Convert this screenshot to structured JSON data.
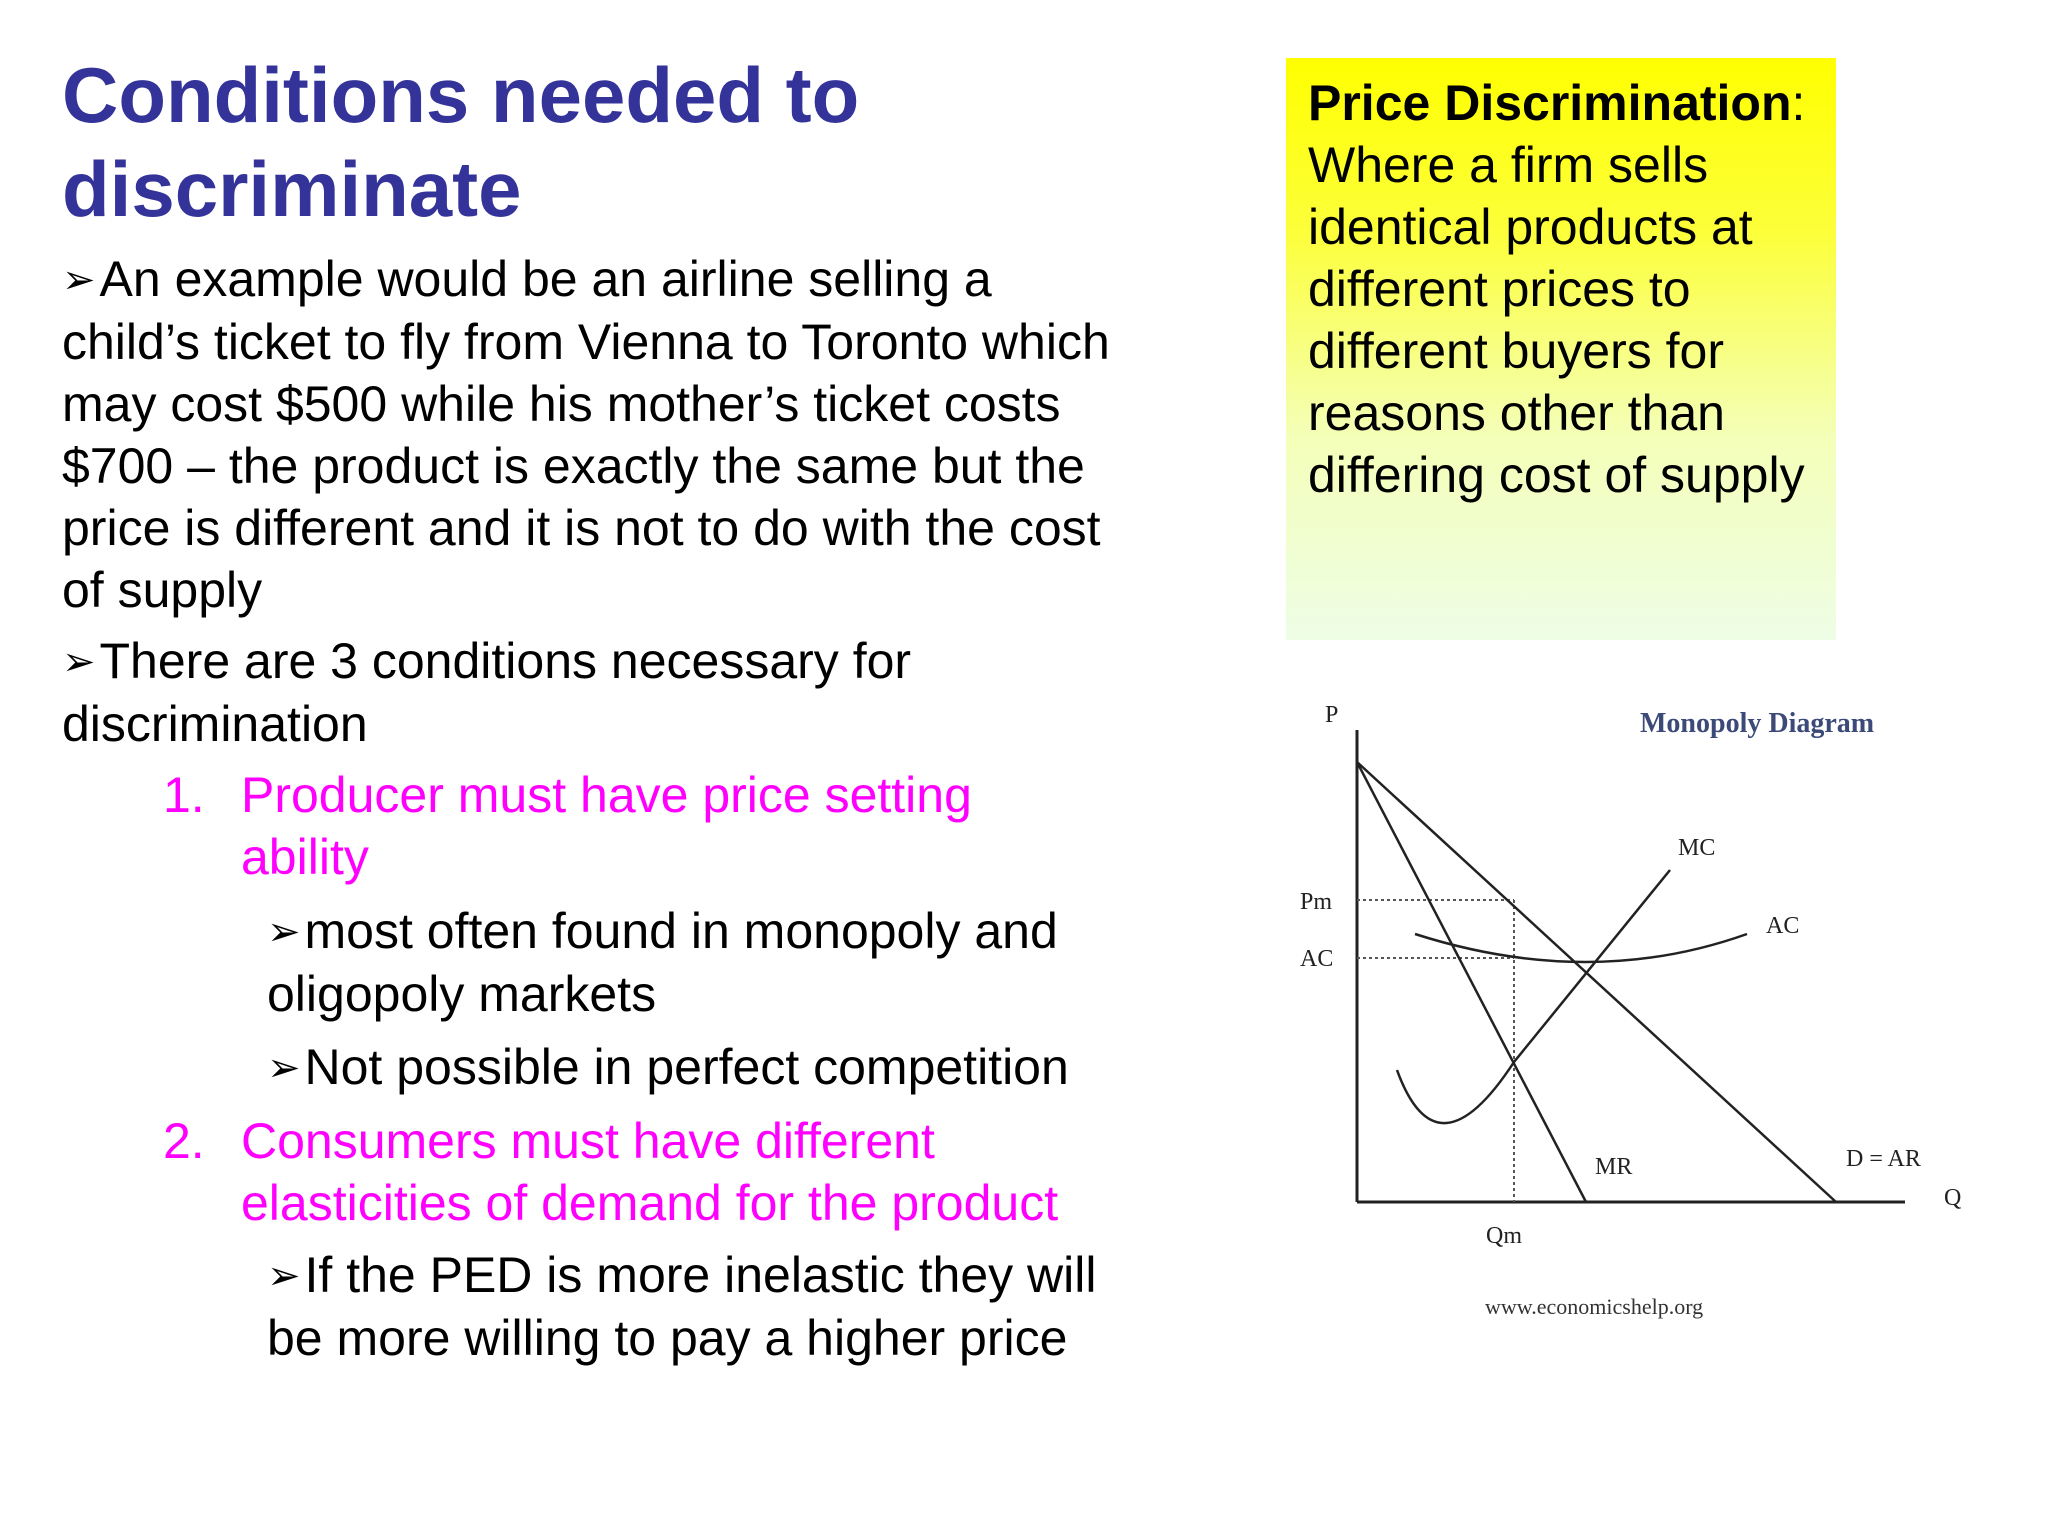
{
  "slide": {
    "title": "Conditions needed to discriminate",
    "bullets": [
      "An example would be an airline selling a child’s ticket to fly from Vienna to Toronto which may cost $500 while his mother’s ticket costs $700 – the product is exactly the same but the price is different and it is not to do with the cost of supply",
      "There are 3 conditions necessary for discrimination"
    ],
    "conditions": [
      {
        "number": "1.",
        "text": "Producer must have price setting ability",
        "sub_bullets": [
          "most often found in monopoly and oligopoly markets",
          "Not possible in perfect competition"
        ]
      },
      {
        "number": "2.",
        "text": "Consumers must have different elasticities of demand for the product",
        "sub_bullets": [
          "If the PED is more inelastic they will be more willing to pay a higher price"
        ]
      }
    ],
    "bullet_glyph": "➢"
  },
  "definition": {
    "term": "Price Discrimination",
    "separator": ":",
    "text": "Where a firm sells identical products at different prices to different buyers for reasons other than differing cost of supply"
  },
  "diagram": {
    "title": "Monopoly Diagram",
    "labels": {
      "p_axis": "P",
      "q_axis": "Q",
      "pm": "Pm",
      "ac_axis": "AC",
      "qm": "Qm",
      "mc": "MC",
      "ac_curve": "AC",
      "mr": "MR",
      "demand": "D = AR"
    },
    "source": "www.economicshelp.org"
  },
  "colors": {
    "title": "#333399",
    "numbered_items": "#ff00ff",
    "definition_box_top": "#ffff00",
    "diagram_title": "#3b4a78"
  }
}
